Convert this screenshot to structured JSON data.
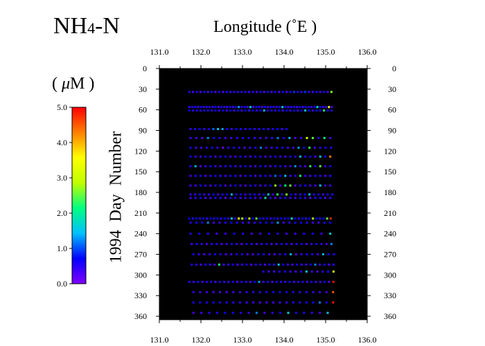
{
  "title": {
    "main": "NH",
    "sub": "4",
    "suffix": "-N"
  },
  "unit": {
    "open": "( ",
    "mu": "μ",
    "rest": "M )"
  },
  "chart_data": {
    "type": "scatter",
    "xlabel": "Longitude (˚E )",
    "ylabel": "1994  Day  Number",
    "xlim": [
      131.0,
      136.0
    ],
    "ylim": [
      0,
      365
    ],
    "y_inverted": true,
    "x_ticks": [
      "131.0",
      "132.0",
      "133.0",
      "134.0",
      "135.0",
      "136.0"
    ],
    "x_tick_values": [
      131.0,
      132.0,
      133.0,
      134.0,
      135.0,
      136.0
    ],
    "y_ticks": [
      0,
      30,
      60,
      90,
      120,
      150,
      180,
      210,
      240,
      270,
      300,
      330,
      360
    ],
    "plot_background": "#000000",
    "colorbar": {
      "label": "( μM )",
      "range": [
        0.0,
        5.0
      ],
      "ticks": [
        "0.0",
        "1.0",
        "2.0",
        "3.0",
        "4.0",
        "5.0"
      ],
      "colors": [
        "#8000ff",
        "#0000ff",
        "#00c0ff",
        "#00ff80",
        "#c0ff00",
        "#ffff00",
        "#ff8000",
        "#ff0000"
      ]
    },
    "rows": [
      {
        "day": 34,
        "x_start": 131.72,
        "x_end": 135.2,
        "step": 0.09,
        "base": 0.45,
        "high": [
          [
            135.2,
            4.9
          ],
          [
            135.15,
            2.6
          ],
          [
            134.5,
            0.9
          ],
          [
            134.2,
            0.9
          ]
        ]
      },
      {
        "day": 56,
        "x_start": 131.72,
        "x_end": 135.2,
        "step": 0.07,
        "base": 0.5,
        "high": [
          [
            135.2,
            4.9
          ],
          [
            135.1,
            3.5
          ],
          [
            134.8,
            1.8
          ],
          [
            133.95,
            1.6
          ],
          [
            133.2,
            1.6
          ],
          [
            132.9,
            1.3
          ]
        ]
      },
      {
        "day": 61,
        "x_start": 131.72,
        "x_end": 135.2,
        "step": 0.09,
        "base": 0.55,
        "high": [
          [
            135.2,
            4.8
          ],
          [
            134.5,
            1.5
          ],
          [
            133.5,
            1.4
          ],
          [
            135.0,
            2.2
          ]
        ]
      },
      {
        "day": 88,
        "x_start": 131.75,
        "x_end": 134.1,
        "step": 0.11,
        "base": 0.55,
        "high": [
          [
            132.45,
            1.5
          ],
          [
            132.55,
            1.3
          ],
          [
            132.35,
            1.1
          ]
        ]
      },
      {
        "day": 101,
        "x_start": 131.75,
        "x_end": 135.2,
        "step": 0.14,
        "base": 0.45,
        "high": [
          [
            134.5,
            3.0
          ],
          [
            134.75,
            2.5
          ],
          [
            134.9,
            2.1
          ],
          [
            135.2,
            1.8
          ],
          [
            134.1,
            1.4
          ],
          [
            133.85,
            1.2
          ],
          [
            132.2,
            1.2
          ]
        ]
      },
      {
        "day": 115,
        "x_start": 131.75,
        "x_end": 135.2,
        "step": 0.13,
        "base": 0.45,
        "high": [
          [
            135.2,
            4.8
          ],
          [
            134.6,
            2.3
          ],
          [
            132.55,
            0.1
          ],
          [
            133.5,
            1.2
          ],
          [
            134.3,
            1.3
          ]
        ]
      },
      {
        "day": 128,
        "x_start": 131.75,
        "x_end": 135.2,
        "step": 0.12,
        "base": 0.45,
        "high": [
          [
            135.15,
            4.3
          ],
          [
            134.85,
            1.5
          ],
          [
            134.4,
            1.4
          ]
        ]
      },
      {
        "day": 142,
        "x_start": 131.75,
        "x_end": 135.2,
        "step": 0.12,
        "base": 0.45,
        "high": [
          [
            135.2,
            4.9
          ],
          [
            134.9,
            2.5
          ],
          [
            134.6,
            2.3
          ],
          [
            134.3,
            1.3
          ],
          [
            131.9,
            1.4
          ]
        ]
      },
      {
        "day": 156,
        "x_start": 131.75,
        "x_end": 135.15,
        "step": 0.12,
        "base": 0.45,
        "high": [
          [
            134.4,
            2.1
          ],
          [
            134.0,
            1.5
          ],
          [
            133.8,
            1.1
          ]
        ]
      },
      {
        "day": 170,
        "x_start": 131.75,
        "x_end": 135.2,
        "step": 0.12,
        "base": 0.45,
        "high": [
          [
            135.2,
            3.6
          ],
          [
            133.8,
            2.7
          ],
          [
            134.0,
            2.2
          ],
          [
            134.1,
            2.5
          ],
          [
            134.9,
            1.5
          ]
        ]
      },
      {
        "day": 183,
        "x_start": 131.75,
        "x_end": 135.2,
        "step": 0.11,
        "base": 0.5,
        "high": [
          [
            133.8,
            2.3
          ],
          [
            134.1,
            2.6
          ],
          [
            133.6,
            1.6
          ],
          [
            132.7,
            1.4
          ],
          [
            134.6,
            1.4
          ]
        ]
      },
      {
        "day": 188,
        "x_start": 131.75,
        "x_end": 135.2,
        "step": 0.12,
        "base": 0.45,
        "high": [
          [
            135.2,
            4.2
          ],
          [
            133.5,
            1.8
          ]
        ]
      },
      {
        "day": 218,
        "x_start": 131.72,
        "x_end": 135.2,
        "step": 0.085,
        "base": 0.6,
        "high": [
          [
            135.2,
            4.9
          ],
          [
            135.15,
            4.8
          ],
          [
            133.2,
            3.2
          ],
          [
            132.9,
            3.6
          ],
          [
            133.0,
            2.8
          ],
          [
            133.35,
            2.5
          ],
          [
            134.7,
            2.8
          ],
          [
            134.2,
            1.8
          ],
          [
            135.0,
            2.5
          ],
          [
            132.7,
            1.5
          ]
        ]
      },
      {
        "day": 224,
        "x_start": 131.75,
        "x_end": 135.2,
        "step": 0.14,
        "base": 0.5,
        "high": [
          [
            133.8,
            1.3
          ],
          [
            132.1,
            1.2
          ]
        ]
      },
      {
        "day": 240,
        "x_start": 131.75,
        "x_end": 135.2,
        "step": 0.21,
        "base": 0.45,
        "high": [
          [
            135.15,
            1.6
          ]
        ]
      },
      {
        "day": 255,
        "x_start": 131.78,
        "x_end": 135.2,
        "step": 0.12,
        "base": 0.45,
        "high": [
          [
            135.2,
            1.2
          ]
        ]
      },
      {
        "day": 270,
        "x_start": 131.82,
        "x_end": 135.2,
        "step": 0.13,
        "base": 0.45,
        "high": [
          [
            134.9,
            1.4
          ],
          [
            134.1,
            1.4
          ]
        ]
      },
      {
        "day": 285,
        "x_start": 131.78,
        "x_end": 135.2,
        "step": 0.11,
        "base": 0.45,
        "high": [
          [
            132.45,
            2.2
          ],
          [
            133.85,
            1.5
          ],
          [
            134.8,
            1.2
          ]
        ]
      },
      {
        "day": 295,
        "x_start": 133.5,
        "x_end": 135.2,
        "step": 0.13,
        "base": 0.45,
        "high": [
          [
            135.15,
            3.0
          ],
          [
            134.55,
            1.6
          ]
        ]
      },
      {
        "day": 310,
        "x_start": 131.72,
        "x_end": 135.2,
        "step": 0.105,
        "base": 0.45,
        "high": [
          [
            135.2,
            4.9
          ],
          [
            133.4,
            1.3
          ]
        ]
      },
      {
        "day": 325,
        "x_start": 131.82,
        "x_end": 135.2,
        "step": 0.16,
        "base": 0.45,
        "high": [
          [
            135.2,
            4.5
          ]
        ]
      },
      {
        "day": 340,
        "x_start": 131.82,
        "x_end": 135.2,
        "step": 0.16,
        "base": 0.45,
        "high": [
          [
            135.2,
            4.9
          ],
          [
            134.8,
            1.2
          ]
        ]
      },
      {
        "day": 355,
        "x_start": 131.82,
        "x_end": 135.2,
        "step": 0.19,
        "base": 0.45,
        "high": [
          [
            134.15,
            1.6
          ],
          [
            135.05,
            1.5
          ],
          [
            133.3,
            1.2
          ]
        ]
      }
    ]
  }
}
